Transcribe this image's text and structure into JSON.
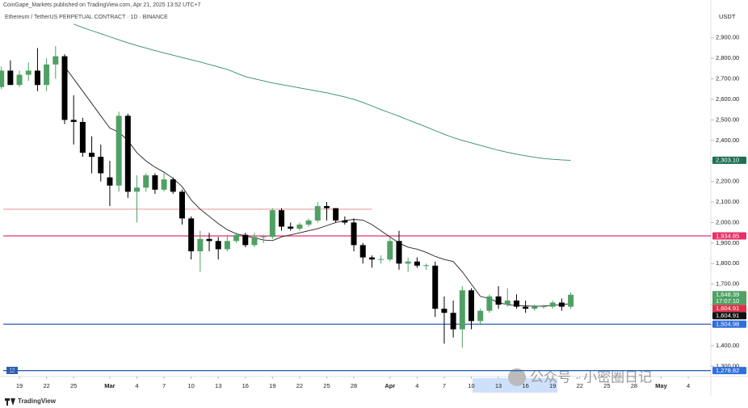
{
  "header": {
    "publisher": "CoinGape_Markets published on TradingView.com, Apr 21, 2025 13:52 UTC+7",
    "symbol": "Ethereum / TetherUS PERPETUAL CONTRACT · 1D · BINANCE",
    "currency": "USDT",
    "brand": "TradingView",
    "watermark": "公众号 · 小密圈日记",
    "badge": "12"
  },
  "chart_data": {
    "type": "candlestick",
    "up_color": "#4fa163",
    "down_color": "#000000",
    "ylim": [
      1250,
      3025
    ],
    "xlim": [
      -0.15,
      78.5
    ],
    "yticks": [
      {
        "value": 1300,
        "label": "1,300.00"
      },
      {
        "value": 1400,
        "label": "1,400.00"
      },
      {
        "value": 1500,
        "label": "1,500.00"
      },
      {
        "value": 1600,
        "label": "1,600.00"
      },
      {
        "value": 1700,
        "label": "1,700.00"
      },
      {
        "value": 1800,
        "label": "1,800.00"
      },
      {
        "value": 1900,
        "label": "1,900.00"
      },
      {
        "value": 2000,
        "label": "2,000.00"
      },
      {
        "value": 2100,
        "label": "2,100.00"
      },
      {
        "value": 2200,
        "label": "2,200.00"
      },
      {
        "value": 2300,
        "label": "2,300.00"
      },
      {
        "value": 2400,
        "label": "2,400.00"
      },
      {
        "value": 2500,
        "label": "2,500.00"
      },
      {
        "value": 2600,
        "label": "2,600.00"
      },
      {
        "value": 2700,
        "label": "2,700.00"
      },
      {
        "value": 2800,
        "label": "2,800.00"
      },
      {
        "value": 2900,
        "label": "2,900.00"
      }
    ],
    "xticks": [
      {
        "value": 2,
        "label": "19"
      },
      {
        "value": 5,
        "label": "22"
      },
      {
        "value": 8,
        "label": "25"
      },
      {
        "value": 12,
        "label": "Mar"
      },
      {
        "value": 15,
        "label": "4"
      },
      {
        "value": 18,
        "label": "7"
      },
      {
        "value": 21,
        "label": "10"
      },
      {
        "value": 24,
        "label": "13"
      },
      {
        "value": 27,
        "label": "16"
      },
      {
        "value": 30,
        "label": "19"
      },
      {
        "value": 33,
        "label": "22"
      },
      {
        "value": 36,
        "label": "25"
      },
      {
        "value": 39,
        "label": "28"
      },
      {
        "value": 43,
        "label": "Apr"
      },
      {
        "value": 46,
        "label": "4"
      },
      {
        "value": 49,
        "label": "7"
      },
      {
        "value": 52,
        "label": "10"
      },
      {
        "value": 55,
        "label": "13"
      },
      {
        "value": 58,
        "label": "16"
      },
      {
        "value": 61,
        "label": "19"
      },
      {
        "value": 64,
        "label": "22"
      },
      {
        "value": 67,
        "label": "25"
      },
      {
        "value": 70,
        "label": "28"
      },
      {
        "value": 73,
        "label": "May"
      },
      {
        "value": 76,
        "label": "4"
      }
    ],
    "candles": [
      {
        "o": 2660,
        "h": 2760,
        "l": 2650,
        "c": 2740
      },
      {
        "o": 2740,
        "h": 2790,
        "l": 2680,
        "c": 2670
      },
      {
        "o": 2670,
        "h": 2740,
        "l": 2660,
        "c": 2720
      },
      {
        "o": 2720,
        "h": 2780,
        "l": 2690,
        "c": 2740
      },
      {
        "o": 2740,
        "h": 2850,
        "l": 2640,
        "c": 2670
      },
      {
        "o": 2670,
        "h": 2800,
        "l": 2640,
        "c": 2770
      },
      {
        "o": 2770,
        "h": 2860,
        "l": 2700,
        "c": 2810
      },
      {
        "o": 2810,
        "h": 2820,
        "l": 2480,
        "c": 2500
      },
      {
        "o": 2500,
        "h": 2620,
        "l": 2380,
        "c": 2490
      },
      {
        "o": 2490,
        "h": 2510,
        "l": 2320,
        "c": 2340
      },
      {
        "o": 2340,
        "h": 2420,
        "l": 2240,
        "c": 2320
      },
      {
        "o": 2320,
        "h": 2380,
        "l": 2200,
        "c": 2240
      },
      {
        "o": 2220,
        "h": 2300,
        "l": 2080,
        "c": 2180
      },
      {
        "o": 2180,
        "h": 2540,
        "l": 2150,
        "c": 2520
      },
      {
        "o": 2520,
        "h": 2530,
        "l": 2120,
        "c": 2150
      },
      {
        "o": 2150,
        "h": 2230,
        "l": 2000,
        "c": 2170
      },
      {
        "o": 2170,
        "h": 2240,
        "l": 2150,
        "c": 2230
      },
      {
        "o": 2230,
        "h": 2240,
        "l": 2140,
        "c": 2160
      },
      {
        "o": 2160,
        "h": 2240,
        "l": 2150,
        "c": 2210
      },
      {
        "o": 2210,
        "h": 2220,
        "l": 2140,
        "c": 2150
      },
      {
        "o": 2150,
        "h": 2160,
        "l": 1990,
        "c": 2020
      },
      {
        "o": 2020,
        "h": 2030,
        "l": 1820,
        "c": 1860
      },
      {
        "o": 1860,
        "h": 1960,
        "l": 1760,
        "c": 1920
      },
      {
        "o": 1920,
        "h": 1950,
        "l": 1860,
        "c": 1910
      },
      {
        "o": 1910,
        "h": 1930,
        "l": 1820,
        "c": 1870
      },
      {
        "o": 1870,
        "h": 1940,
        "l": 1860,
        "c": 1910
      },
      {
        "o": 1910,
        "h": 1950,
        "l": 1900,
        "c": 1940
      },
      {
        "o": 1940,
        "h": 1950,
        "l": 1880,
        "c": 1890
      },
      {
        "o": 1890,
        "h": 1950,
        "l": 1880,
        "c": 1930
      },
      {
        "o": 1930,
        "h": 1940,
        "l": 1900,
        "c": 1932
      },
      {
        "o": 1930,
        "h": 2070,
        "l": 1920,
        "c": 2060
      },
      {
        "o": 2060,
        "h": 2070,
        "l": 1960,
        "c": 1980
      },
      {
        "o": 1980,
        "h": 2000,
        "l": 1960,
        "c": 1970
      },
      {
        "o": 1970,
        "h": 2000,
        "l": 1960,
        "c": 1990
      },
      {
        "o": 1990,
        "h": 2020,
        "l": 1980,
        "c": 2010
      },
      {
        "o": 2010,
        "h": 2100,
        "l": 2000,
        "c": 2080
      },
      {
        "o": 2080,
        "h": 2100,
        "l": 2010,
        "c": 2070
      },
      {
        "o": 2070,
        "h": 2070,
        "l": 2000,
        "c": 2010
      },
      {
        "o": 2010,
        "h": 2030,
        "l": 1990,
        "c": 2000
      },
      {
        "o": 2000,
        "h": 2020,
        "l": 1860,
        "c": 1890
      },
      {
        "o": 1890,
        "h": 1900,
        "l": 1800,
        "c": 1830
      },
      {
        "o": 1830,
        "h": 1840,
        "l": 1780,
        "c": 1820
      },
      {
        "o": 1820,
        "h": 1840,
        "l": 1800,
        "c": 1822
      },
      {
        "o": 1820,
        "h": 1930,
        "l": 1810,
        "c": 1910
      },
      {
        "o": 1910,
        "h": 1960,
        "l": 1770,
        "c": 1800
      },
      {
        "o": 1800,
        "h": 1830,
        "l": 1760,
        "c": 1810
      },
      {
        "o": 1810,
        "h": 1830,
        "l": 1780,
        "c": 1790
      },
      {
        "o": 1790,
        "h": 1800,
        "l": 1770,
        "c": 1792
      },
      {
        "o": 1790,
        "h": 1810,
        "l": 1540,
        "c": 1580
      },
      {
        "o": 1580,
        "h": 1640,
        "l": 1410,
        "c": 1560
      },
      {
        "o": 1560,
        "h": 1620,
        "l": 1440,
        "c": 1480
      },
      {
        "o": 1480,
        "h": 1690,
        "l": 1390,
        "c": 1670
      },
      {
        "o": 1670,
        "h": 1680,
        "l": 1480,
        "c": 1520
      },
      {
        "o": 1520,
        "h": 1580,
        "l": 1500,
        "c": 1570
      },
      {
        "o": 1570,
        "h": 1650,
        "l": 1560,
        "c": 1640
      },
      {
        "o": 1640,
        "h": 1690,
        "l": 1580,
        "c": 1600
      },
      {
        "o": 1600,
        "h": 1680,
        "l": 1590,
        "c": 1620
      },
      {
        "o": 1620,
        "h": 1650,
        "l": 1580,
        "c": 1590
      },
      {
        "o": 1590,
        "h": 1620,
        "l": 1560,
        "c": 1580
      },
      {
        "o": 1580,
        "h": 1600,
        "l": 1570,
        "c": 1590
      },
      {
        "o": 1590,
        "h": 1600,
        "l": 1580,
        "c": 1592
      },
      {
        "o": 1590,
        "h": 1620,
        "l": 1580,
        "c": 1610
      },
      {
        "o": 1610,
        "h": 1630,
        "l": 1570,
        "c": 1590
      },
      {
        "o": 1590,
        "h": 1660,
        "l": 1580,
        "c": 1648.39
      }
    ],
    "series": [
      {
        "color": "#2e8b6e",
        "values": [
          null,
          null,
          null,
          null,
          null,
          null,
          null,
          null,
          2967,
          2950,
          2935,
          2920,
          2905,
          2890,
          2875,
          2862,
          2850,
          2838,
          2826,
          2815,
          2804,
          2793,
          2782,
          2770,
          2758,
          2746,
          2728,
          2711,
          2700,
          2690,
          2680,
          2672,
          2664,
          2656,
          2648,
          2640,
          2632,
          2622,
          2612,
          2600,
          2585,
          2568,
          2550,
          2534,
          2518,
          2500,
          2483,
          2466,
          2448,
          2430,
          2414,
          2400,
          2388,
          2376,
          2364,
          2352,
          2342,
          2333,
          2325,
          2318,
          2312,
          2308,
          2305,
          2303.1
        ]
      },
      {
        "color": "#222222",
        "values": [
          null,
          null,
          null,
          null,
          null,
          null,
          null,
          2760,
          2700,
          2640,
          2580,
          2520,
          2460,
          2440,
          2400,
          2340,
          2300,
          2270,
          2245,
          2215,
          2175,
          2110,
          2065,
          2030,
          1995,
          1965,
          1945,
          1935,
          1925,
          1915,
          1912,
          1930,
          1940,
          1950,
          1960,
          1970,
          1985,
          2000,
          2010,
          2015,
          2012,
          1990,
          1960,
          1930,
          1900,
          1880,
          1870,
          1855,
          1835,
          1820,
          1810,
          1760,
          1700,
          1640,
          1630,
          1610,
          1600,
          1595,
          1594,
          1592,
          1593,
          1596,
          1600,
          1604.91
        ]
      }
    ],
    "levels": [
      {
        "value": 2065,
        "color": "#e88a8a",
        "end": 41
      },
      {
        "value": 1934.85,
        "color": "#e8306a"
      },
      {
        "value": 1504.98,
        "color": "#2f5fb3"
      },
      {
        "value": 1278.82,
        "color": "#2f5fb3"
      }
    ],
    "price_tags": [
      {
        "value": 2303.1,
        "label": "2,303.10",
        "color": "#1e6e55"
      },
      {
        "value": 1934.85,
        "label": "1,934.85",
        "color": "#e8306a"
      },
      {
        "value": 1648.39,
        "label": "1,648.39",
        "sub": "17:07:10",
        "color": "#4fa163"
      },
      {
        "value": 1604.91,
        "label": "1,604.91",
        "color": "#e0304a"
      },
      {
        "value": 1604.91,
        "label": "1,604.91",
        "color": "#111111"
      },
      {
        "value": 1504.98,
        "label": "1,504.98",
        "color": "#2f6fdc"
      },
      {
        "value": 1278.82,
        "label": "1,278.82",
        "color": "#2f6fdc"
      }
    ]
  }
}
